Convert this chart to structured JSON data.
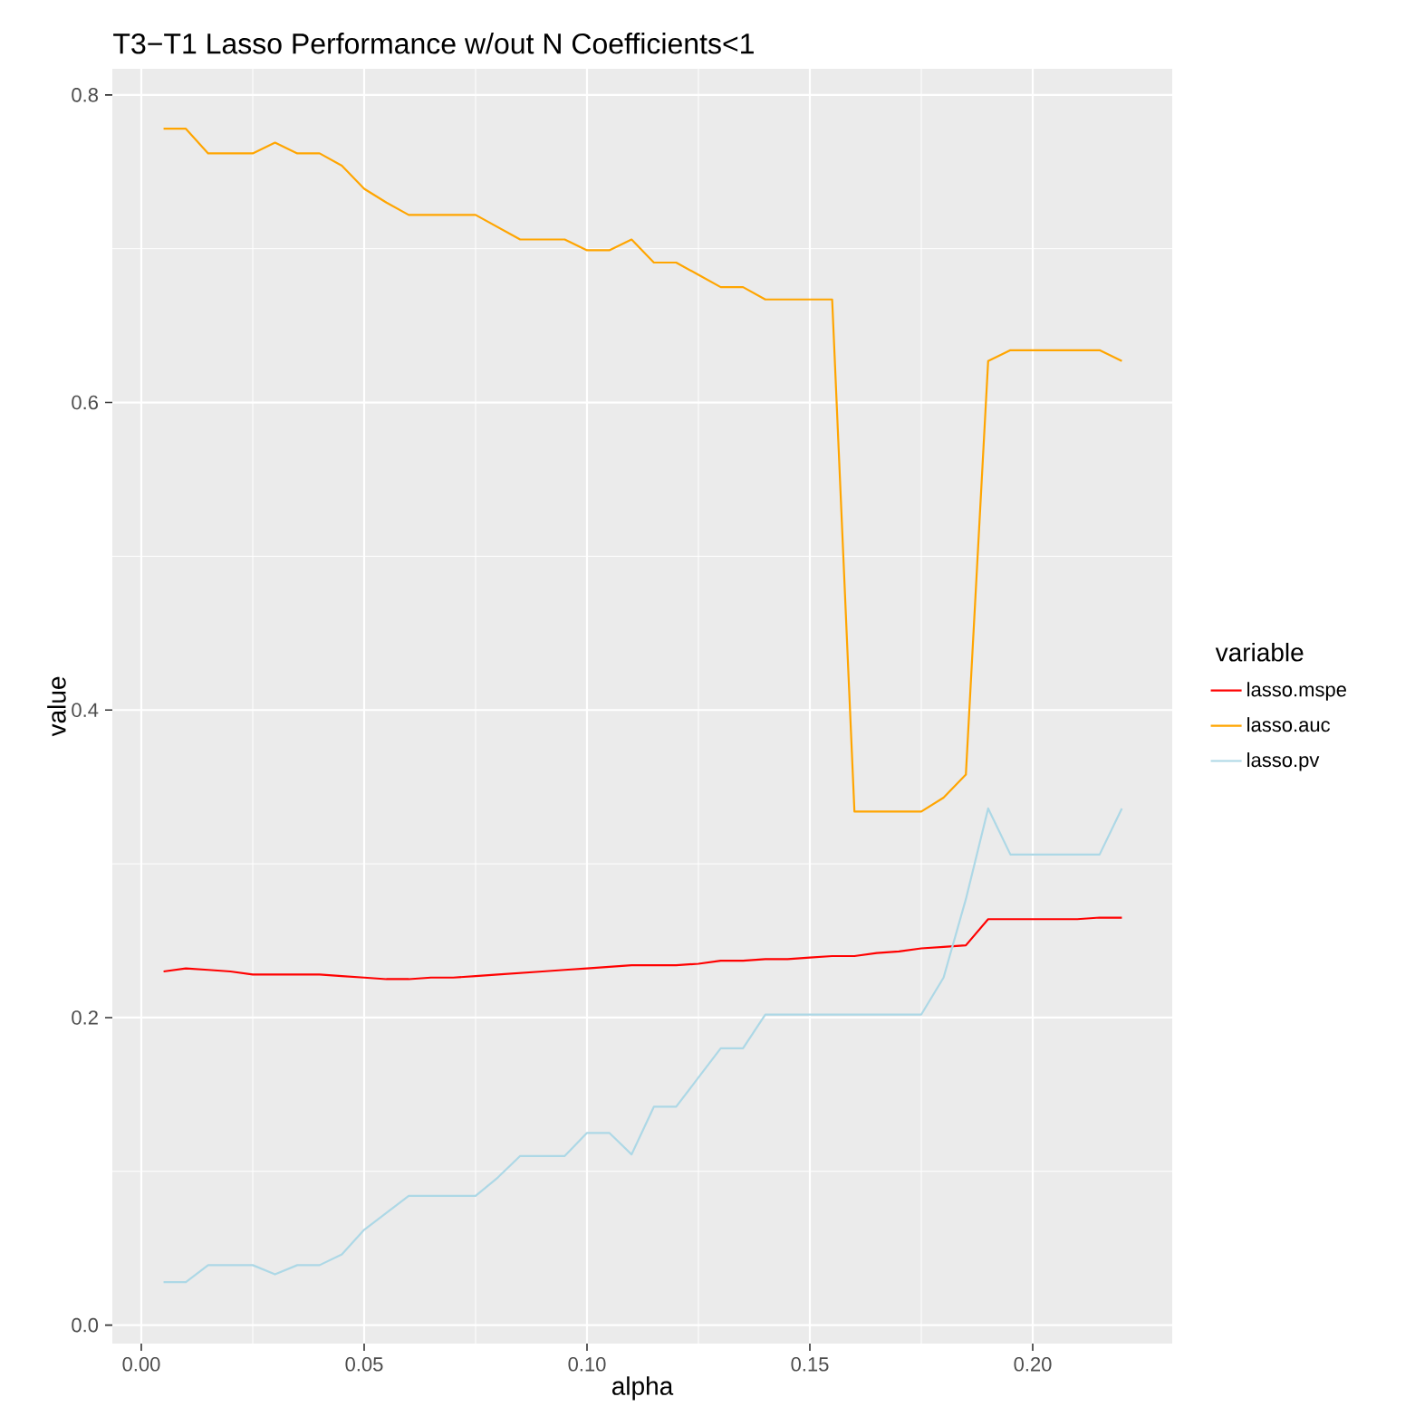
{
  "chart_data": {
    "type": "line",
    "title": "T3−T1 Lasso Performance w/out N Coefficients<1",
    "xlabel": "alpha",
    "ylabel": "value",
    "legend_title": "variable",
    "legend": "right",
    "grid": true,
    "x": [
      0.005,
      0.01,
      0.015,
      0.02,
      0.025,
      0.03,
      0.035,
      0.04,
      0.045,
      0.05,
      0.055,
      0.06,
      0.065,
      0.07,
      0.075,
      0.08,
      0.085,
      0.09,
      0.095,
      0.1,
      0.105,
      0.11,
      0.115,
      0.12,
      0.125,
      0.13,
      0.135,
      0.14,
      0.145,
      0.15,
      0.155,
      0.16,
      0.165,
      0.17,
      0.175,
      0.18,
      0.185,
      0.19,
      0.195,
      0.2,
      0.205,
      0.21,
      0.215,
      0.22
    ],
    "series": [
      {
        "name": "lasso.mspe",
        "color": "#ff0000",
        "values": [
          0.23,
          0.232,
          0.231,
          0.23,
          0.228,
          0.228,
          0.228,
          0.228,
          0.227,
          0.226,
          0.225,
          0.225,
          0.226,
          0.226,
          0.227,
          0.228,
          0.229,
          0.23,
          0.231,
          0.232,
          0.233,
          0.234,
          0.234,
          0.234,
          0.235,
          0.237,
          0.237,
          0.238,
          0.238,
          0.239,
          0.24,
          0.24,
          0.242,
          0.243,
          0.245,
          0.246,
          0.247,
          0.264,
          0.264,
          0.264,
          0.264,
          0.264,
          0.265,
          0.265
        ]
      },
      {
        "name": "lasso.auc",
        "color": "#ffa500",
        "values": [
          0.778,
          0.778,
          0.762,
          0.762,
          0.762,
          0.769,
          0.762,
          0.762,
          0.754,
          0.739,
          0.73,
          0.722,
          0.722,
          0.722,
          0.722,
          0.714,
          0.706,
          0.706,
          0.706,
          0.699,
          0.699,
          0.706,
          0.691,
          0.691,
          0.683,
          0.675,
          0.675,
          0.667,
          0.667,
          0.667,
          0.667,
          0.334,
          0.334,
          0.334,
          0.334,
          0.343,
          0.358,
          0.627,
          0.634,
          0.634,
          0.634,
          0.634,
          0.634,
          0.627
        ]
      },
      {
        "name": "lasso.pv",
        "color": "#add8e6",
        "values": [
          0.028,
          0.028,
          0.039,
          0.039,
          0.039,
          0.033,
          0.039,
          0.039,
          0.046,
          0.062,
          0.073,
          0.084,
          0.084,
          0.084,
          0.084,
          0.096,
          0.11,
          0.11,
          0.11,
          0.125,
          0.125,
          0.111,
          0.142,
          0.142,
          0.161,
          0.18,
          0.18,
          0.202,
          0.202,
          0.202,
          0.202,
          0.202,
          0.202,
          0.202,
          0.202,
          0.226,
          0.277,
          0.336,
          0.306,
          0.306,
          0.306,
          0.306,
          0.306,
          0.336
        ]
      }
    ],
    "xlim": [
      -0.0065,
      0.2313
    ],
    "ylim": [
      -0.012,
      0.817
    ],
    "xticks": [
      {
        "value": 0,
        "label": "0.00"
      },
      0.05,
      {
        "value": 0.1,
        "label": "0.10"
      },
      0.15,
      {
        "value": 0.2,
        "label": "0.20"
      }
    ],
    "yticks": [
      {
        "value": 0,
        "label": "0.0"
      },
      0.2,
      0.4,
      0.6,
      0.8
    ]
  }
}
